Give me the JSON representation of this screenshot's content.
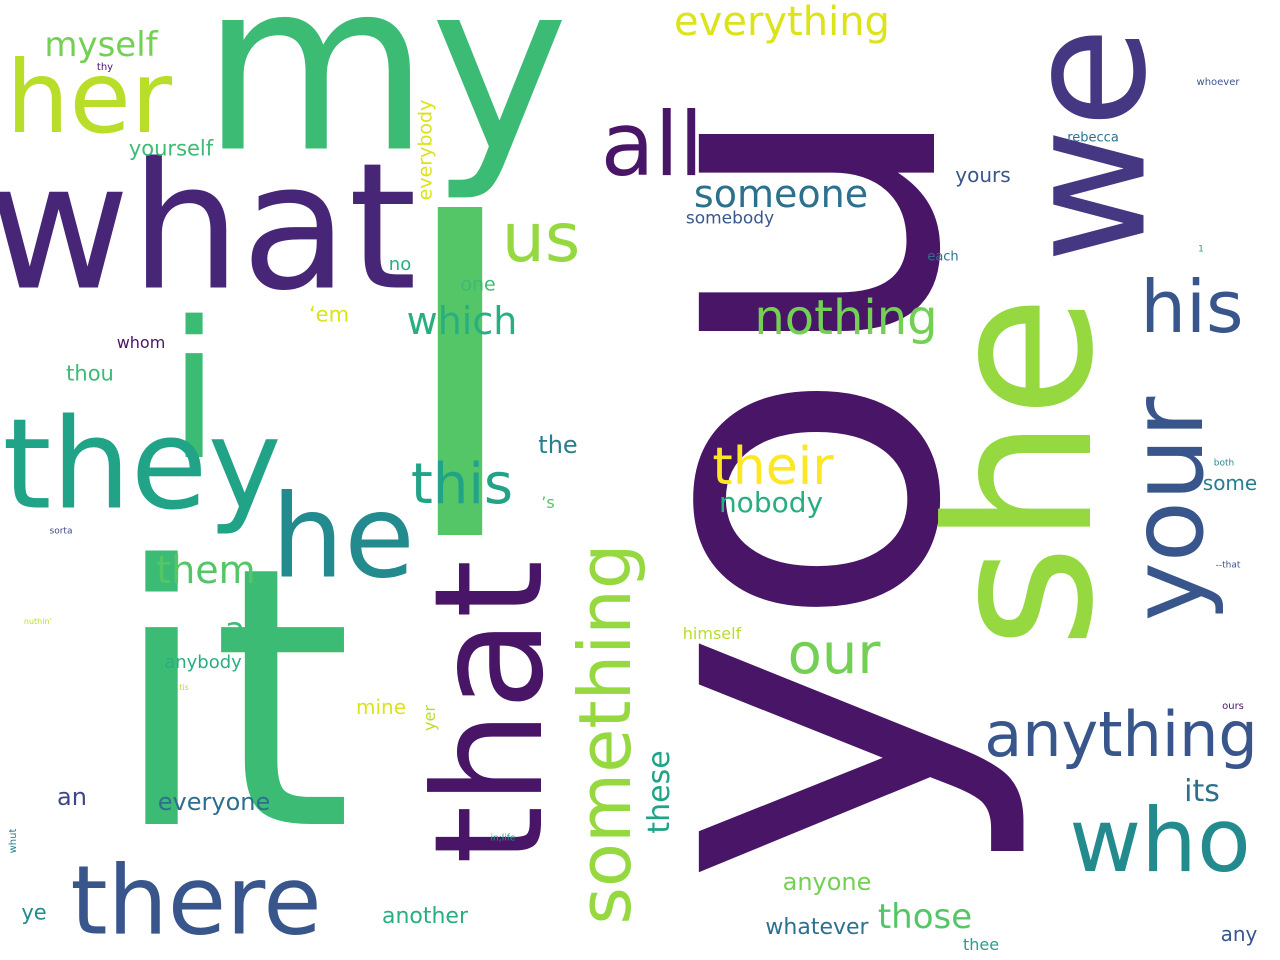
{
  "words": [
    {
      "text": "you",
      "color": "#481567"
    },
    {
      "text": "I",
      "color": "#55c667"
    },
    {
      "text": "it",
      "color": "#3cbb75"
    },
    {
      "text": "my",
      "color": "#3cbb75"
    },
    {
      "text": "what",
      "color": "#482677"
    },
    {
      "text": "i",
      "color": "#3cbb75"
    },
    {
      "text": "she",
      "color": "#95d840"
    },
    {
      "text": "we",
      "color": "#453781"
    },
    {
      "text": "that",
      "color": "#481567"
    },
    {
      "text": "they",
      "color": "#20a387"
    },
    {
      "text": "her",
      "color": "#b8de29"
    },
    {
      "text": "he",
      "color": "#238a8d"
    },
    {
      "text": "your",
      "color": "#39568c"
    },
    {
      "text": "there",
      "color": "#39568c"
    },
    {
      "text": "who",
      "color": "#238a8d"
    },
    {
      "text": "all",
      "color": "#481567"
    },
    {
      "text": "something",
      "color": "#95d840"
    },
    {
      "text": "his",
      "color": "#39568c"
    },
    {
      "text": "anything",
      "color": "#39568c"
    },
    {
      "text": "us",
      "color": "#95d840"
    },
    {
      "text": "this",
      "color": "#20a387"
    },
    {
      "text": "their",
      "color": "#fde725"
    },
    {
      "text": "our",
      "color": "#73d055"
    },
    {
      "text": "nothing",
      "color": "#73d055"
    },
    {
      "text": "someone",
      "color": "#2d708e"
    },
    {
      "text": "everything",
      "color": "#dce319"
    },
    {
      "text": "which",
      "color": "#29af7f"
    },
    {
      "text": "them",
      "color": "#55c667"
    },
    {
      "text": "those",
      "color": "#55c667"
    },
    {
      "text": "myself",
      "color": "#73d055"
    },
    {
      "text": "nobody",
      "color": "#29af7f"
    },
    {
      "text": "these",
      "color": "#20a387"
    },
    {
      "text": "its",
      "color": "#2d708e"
    },
    {
      "text": "a",
      "color": "#3cbb75"
    },
    {
      "text": "anyone",
      "color": "#73d055"
    },
    {
      "text": "everyone",
      "color": "#2d708e"
    },
    {
      "text": "yourself",
      "color": "#3cbb75"
    },
    {
      "text": "another",
      "color": "#29af7f"
    },
    {
      "text": "whatever",
      "color": "#2d708e"
    },
    {
      "text": "everybody",
      "color": "#dce319"
    },
    {
      "text": "the",
      "color": "#287d8e"
    },
    {
      "text": "an",
      "color": "#404688"
    },
    {
      "text": "yours",
      "color": "#39568c"
    },
    {
      "text": "some",
      "color": "#287d8e"
    },
    {
      "text": "any",
      "color": "#39568c"
    },
    {
      "text": "mine",
      "color": "#dce319"
    },
    {
      "text": "thou",
      "color": "#3cbb75"
    },
    {
      "text": "‘em",
      "color": "#dce319"
    },
    {
      "text": "one",
      "color": "#3cbb75"
    },
    {
      "text": "anybody",
      "color": "#29af7f"
    },
    {
      "text": "ye",
      "color": "#238a8d"
    },
    {
      "text": "somebody",
      "color": "#39568c"
    },
    {
      "text": "himself",
      "color": "#b8de29"
    },
    {
      "text": "no",
      "color": "#29af7f"
    },
    {
      "text": "whom",
      "color": "#481567"
    },
    {
      "text": "thee",
      "color": "#20a387"
    },
    {
      "text": "yer",
      "color": "#b8de29"
    },
    {
      "text": "’s",
      "color": "#55c667"
    },
    {
      "text": "rebecca",
      "color": "#2d708e"
    },
    {
      "text": "each",
      "color": "#2d708e"
    },
    {
      "text": "whoever",
      "color": "#39568c"
    },
    {
      "text": "ours",
      "color": "#481567"
    },
    {
      "text": "thy",
      "color": "#481567"
    },
    {
      "text": "both",
      "color": "#238a8d"
    },
    {
      "text": "--that",
      "color": "#39568c"
    },
    {
      "text": "sorta",
      "color": "#404688"
    },
    {
      "text": "whut",
      "color": "#287d8e"
    },
    {
      "text": "in;life",
      "color": "#20a387"
    },
    {
      "text": "nuthin’",
      "color": "#b8de29"
    },
    {
      "text": "tis",
      "color": "#b8de29"
    },
    {
      "text": "1",
      "color": "#20a387"
    }
  ]
}
